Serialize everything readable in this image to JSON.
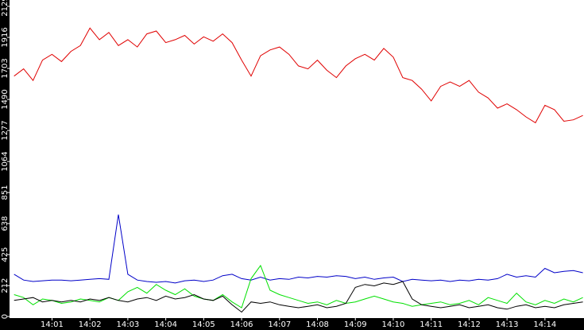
{
  "chart_data": {
    "type": "line",
    "x": [
      840,
      840.25,
      840.5,
      840.75,
      841,
      841.25,
      841.5,
      841.75,
      842,
      842.25,
      842.5,
      842.75,
      843,
      843.25,
      843.5,
      843.75,
      844,
      844.25,
      844.5,
      844.75,
      845,
      845.25,
      845.5,
      845.75,
      846,
      846.25,
      846.5,
      846.75,
      847,
      847.25,
      847.5,
      847.75,
      848,
      848.25,
      848.5,
      848.75,
      849,
      849.25,
      849.5,
      849.75,
      850,
      850.25,
      850.5,
      850.75,
      851,
      851.25,
      851.5,
      851.75,
      852,
      852.25,
      852.5,
      852.75,
      853,
      853.25,
      853.5,
      853.75,
      854,
      854.25,
      854.5,
      854.75,
      855
    ],
    "xlim": [
      839.88,
      855.03
    ],
    "xticks": [
      {
        "value": 841,
        "label": "14:01"
      },
      {
        "value": 842,
        "label": "14:02"
      },
      {
        "value": 843,
        "label": "14:03"
      },
      {
        "value": 844,
        "label": "14:04"
      },
      {
        "value": 845,
        "label": "14:05"
      },
      {
        "value": 846,
        "label": "14:06"
      },
      {
        "value": 847,
        "label": "14:07"
      },
      {
        "value": 848,
        "label": "14:08"
      },
      {
        "value": 849,
        "label": "14:09"
      },
      {
        "value": 850,
        "label": "14:10"
      },
      {
        "value": 851,
        "label": "14:11"
      },
      {
        "value": 852,
        "label": "14:12"
      },
      {
        "value": 853,
        "label": "14:13"
      },
      {
        "value": 854,
        "label": "14:14"
      }
    ],
    "ylim": [
      0,
      2129
    ],
    "yticks": [
      0,
      212,
      425,
      638,
      851,
      1064,
      1277,
      1490,
      1703,
      1916,
      2129
    ],
    "series": [
      {
        "color": "#e00000",
        "values": [
          1650,
          1700,
          1620,
          1760,
          1800,
          1750,
          1820,
          1860,
          1980,
          1900,
          1950,
          1860,
          1900,
          1850,
          1940,
          1960,
          1880,
          1900,
          1930,
          1870,
          1920,
          1890,
          1940,
          1880,
          1760,
          1650,
          1790,
          1830,
          1850,
          1800,
          1720,
          1700,
          1760,
          1690,
          1640,
          1720,
          1770,
          1800,
          1760,
          1840,
          1780,
          1640,
          1620,
          1560,
          1480,
          1580,
          1610,
          1580,
          1620,
          1540,
          1500,
          1430,
          1460,
          1420,
          1370,
          1330,
          1450,
          1420,
          1340,
          1350,
          1380
        ]
      },
      {
        "color": "#0000c8",
        "values": [
          290,
          250,
          240,
          245,
          250,
          250,
          245,
          250,
          255,
          260,
          255,
          700,
          290,
          250,
          240,
          235,
          240,
          230,
          245,
          250,
          240,
          250,
          280,
          290,
          260,
          250,
          270,
          250,
          260,
          255,
          270,
          265,
          275,
          270,
          280,
          275,
          260,
          270,
          255,
          265,
          270,
          240,
          255,
          250,
          245,
          250,
          240,
          250,
          245,
          255,
          250,
          260,
          290,
          270,
          280,
          270,
          330,
          300,
          310,
          315,
          300
        ]
      },
      {
        "color": "#00e000",
        "values": [
          150,
          130,
          80,
          120,
          110,
          90,
          100,
          120,
          110,
          100,
          130,
          110,
          170,
          200,
          160,
          220,
          180,
          150,
          190,
          140,
          120,
          110,
          150,
          100,
          60,
          260,
          350,
          180,
          150,
          130,
          110,
          90,
          100,
          80,
          110,
          90,
          100,
          120,
          140,
          120,
          100,
          90,
          70,
          80,
          90,
          100,
          80,
          90,
          110,
          80,
          130,
          110,
          90,
          160,
          100,
          80,
          110,
          90,
          120,
          100,
          130
        ]
      },
      {
        "color": "#000000",
        "values": [
          110,
          120,
          130,
          100,
          110,
          100,
          110,
          100,
          120,
          110,
          130,
          110,
          100,
          120,
          130,
          110,
          140,
          120,
          130,
          150,
          120,
          110,
          140,
          80,
          30,
          100,
          90,
          100,
          80,
          70,
          60,
          70,
          80,
          60,
          70,
          90,
          200,
          220,
          210,
          230,
          220,
          240,
          120,
          80,
          70,
          60,
          70,
          80,
          60,
          70,
          80,
          60,
          50,
          70,
          80,
          60,
          70,
          60,
          80,
          90,
          100
        ]
      }
    ]
  }
}
